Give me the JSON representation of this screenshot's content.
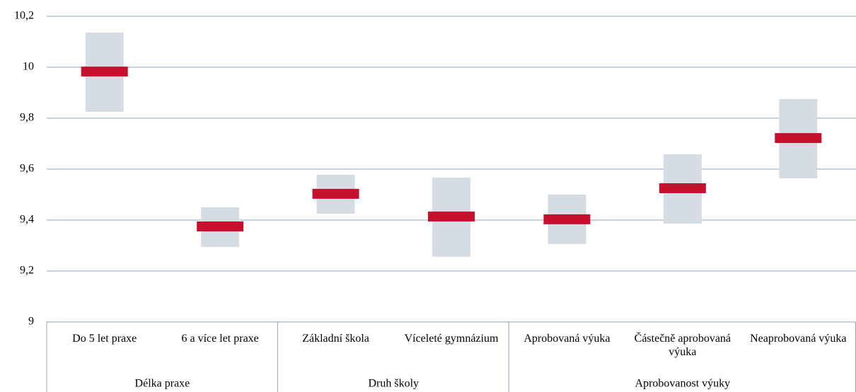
{
  "chart_data": {
    "type": "range",
    "groups": [
      {
        "name": "Délka praxe",
        "categories": [
          "Do 5 let praxe",
          "6 a více let praxe"
        ]
      },
      {
        "name": "Druh školy",
        "categories": [
          "Základní škola",
          "Víceleté gymnázium"
        ]
      },
      {
        "name": "Aprobovanost výuky",
        "categories": [
          "Aprobovaná výuka",
          "Částečně aprobovaná výuka",
          "Neaprobovaná výuka"
        ]
      }
    ],
    "low": [
      9.825,
      9.294,
      9.425,
      9.256,
      9.306,
      9.386,
      9.564
    ],
    "high": [
      10.136,
      9.45,
      9.578,
      9.567,
      9.5,
      9.658,
      9.875
    ],
    "mean": [
      9.983,
      9.375,
      9.503,
      9.414,
      9.403,
      9.525,
      9.722
    ],
    "range_color": "#d6dce4",
    "mean_color": "#c8102e",
    "ylim": [
      9,
      10.2
    ],
    "yticks": [
      9,
      {
        "value": 9.2,
        "label": "9,2"
      },
      {
        "value": 9.4,
        "label": "9,4"
      },
      {
        "value": 9.6,
        "label": "9,6"
      },
      {
        "value": 9.8,
        "label": "9,8"
      },
      10,
      {
        "value": 10.2,
        "label": "10,2"
      }
    ],
    "grid": true
  }
}
